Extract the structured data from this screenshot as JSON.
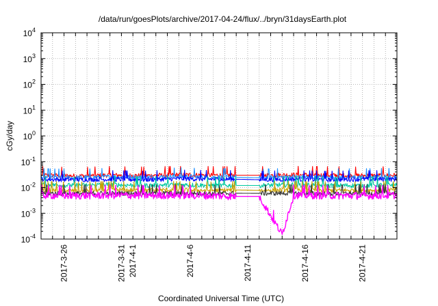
{
  "chart_data": {
    "type": "line",
    "title": "/data/run/goesPlots/archive/2017-04-24/flux/../bryn/31daysEarth.plot",
    "xlabel": "Coordinated Universal Time (UTC)",
    "ylabel": "cGy/day",
    "yscale": "log",
    "ylim": [
      0.0001,
      10000
    ],
    "xlim": [
      "2017-03-24",
      "2017-04-24"
    ],
    "grid": true,
    "legend": "none",
    "y_ticks": [
      {
        "base": "10",
        "exp": "4",
        "value": 10000
      },
      {
        "base": "10",
        "exp": "3",
        "value": 1000
      },
      {
        "base": "10",
        "exp": "2",
        "value": 100
      },
      {
        "base": "10",
        "exp": "1",
        "value": 10
      },
      {
        "base": "10",
        "exp": "0",
        "value": 1
      },
      {
        "base": "10",
        "exp": "-1",
        "value": 0.1
      },
      {
        "base": "10",
        "exp": "-2",
        "value": 0.01
      },
      {
        "base": "10",
        "exp": "-3",
        "value": 0.001
      },
      {
        "base": "10",
        "exp": "-4",
        "value": 0.0001
      }
    ],
    "x_ticks": [
      "2017-3-26",
      "2017-3-31",
      "2017-4-1",
      "2017-4-6",
      "2017-4-11",
      "2017-4-16",
      "2017-4-21"
    ],
    "x_tick_dates": [
      "2017-03-26",
      "2017-03-31",
      "2017-04-01",
      "2017-04-06",
      "2017-04-11",
      "2017-04-16",
      "2017-04-21"
    ],
    "data_gap": [
      "2017-04-10",
      "2017-04-12"
    ],
    "series": [
      {
        "color": "#ff0000",
        "x": [
          "2017-03-24",
          "2017-03-27",
          "2017-03-30",
          "2017-04-02",
          "2017-04-05",
          "2017-04-08",
          "2017-04-10",
          "2017-04-12",
          "2017-04-15",
          "2017-04-18",
          "2017-04-21",
          "2017-04-24"
        ],
        "y": [
          0.03,
          0.028,
          0.03,
          0.029,
          0.031,
          0.03,
          0.03,
          0.03,
          0.031,
          0.03,
          0.029,
          0.03
        ]
      },
      {
        "color": "#1e90ff",
        "x": [
          "2017-03-24",
          "2017-03-27",
          "2017-03-30",
          "2017-04-02",
          "2017-04-05",
          "2017-04-08",
          "2017-04-10",
          "2017-04-12",
          "2017-04-15",
          "2017-04-18",
          "2017-04-21",
          "2017-04-24"
        ],
        "y": [
          0.025,
          0.024,
          0.026,
          0.025,
          0.027,
          0.025,
          0.025,
          0.024,
          0.026,
          0.025,
          0.025,
          0.026
        ]
      },
      {
        "color": "#0000ff",
        "x": [
          "2017-03-24",
          "2017-03-27",
          "2017-03-30",
          "2017-04-02",
          "2017-04-05",
          "2017-04-08",
          "2017-04-10",
          "2017-04-12",
          "2017-04-15",
          "2017-04-18",
          "2017-04-21",
          "2017-04-24"
        ],
        "y": [
          0.021,
          0.02,
          0.021,
          0.02,
          0.022,
          0.021,
          0.021,
          0.02,
          0.021,
          0.02,
          0.021,
          0.021
        ]
      },
      {
        "color": "#00c8a0",
        "x": [
          "2017-03-24",
          "2017-03-27",
          "2017-03-30",
          "2017-04-02",
          "2017-04-05",
          "2017-04-08",
          "2017-04-10",
          "2017-04-12",
          "2017-04-15",
          "2017-04-18",
          "2017-04-21",
          "2017-04-24"
        ],
        "y": [
          0.013,
          0.012,
          0.013,
          0.012,
          0.013,
          0.012,
          0.012,
          0.012,
          0.013,
          0.012,
          0.012,
          0.013
        ]
      },
      {
        "color": "#c8a000",
        "x": [
          "2017-03-24",
          "2017-03-27",
          "2017-03-30",
          "2017-04-02",
          "2017-04-05",
          "2017-04-08",
          "2017-04-10",
          "2017-04-12",
          "2017-04-15",
          "2017-04-18",
          "2017-04-21",
          "2017-04-24"
        ],
        "y": [
          0.008,
          0.0075,
          0.008,
          0.0078,
          0.008,
          0.0077,
          0.008,
          0.0078,
          0.008,
          0.0077,
          0.0078,
          0.008
        ]
      },
      {
        "color": "#333333",
        "x": [
          "2017-03-24",
          "2017-03-27",
          "2017-03-30",
          "2017-04-02",
          "2017-04-05",
          "2017-04-08",
          "2017-04-10",
          "2017-04-12",
          "2017-04-15",
          "2017-04-18",
          "2017-04-21",
          "2017-04-24"
        ],
        "y": [
          0.006,
          0.0058,
          0.006,
          0.0059,
          0.006,
          0.0058,
          0.006,
          0.0059,
          0.006,
          0.0058,
          0.0059,
          0.006
        ]
      },
      {
        "color": "#ff00ff",
        "x": [
          "2017-03-24",
          "2017-03-27",
          "2017-03-30",
          "2017-04-02",
          "2017-04-05",
          "2017-04-08",
          "2017-04-10",
          "2017-04-12",
          "2017-04-14",
          "2017-04-15",
          "2017-04-18",
          "2017-04-21",
          "2017-04-24"
        ],
        "y": [
          0.005,
          0.0048,
          0.005,
          0.0049,
          0.005,
          0.0048,
          0.0045,
          0.0045,
          0.00015,
          0.005,
          0.0049,
          0.0048,
          0.005
        ]
      }
    ]
  }
}
